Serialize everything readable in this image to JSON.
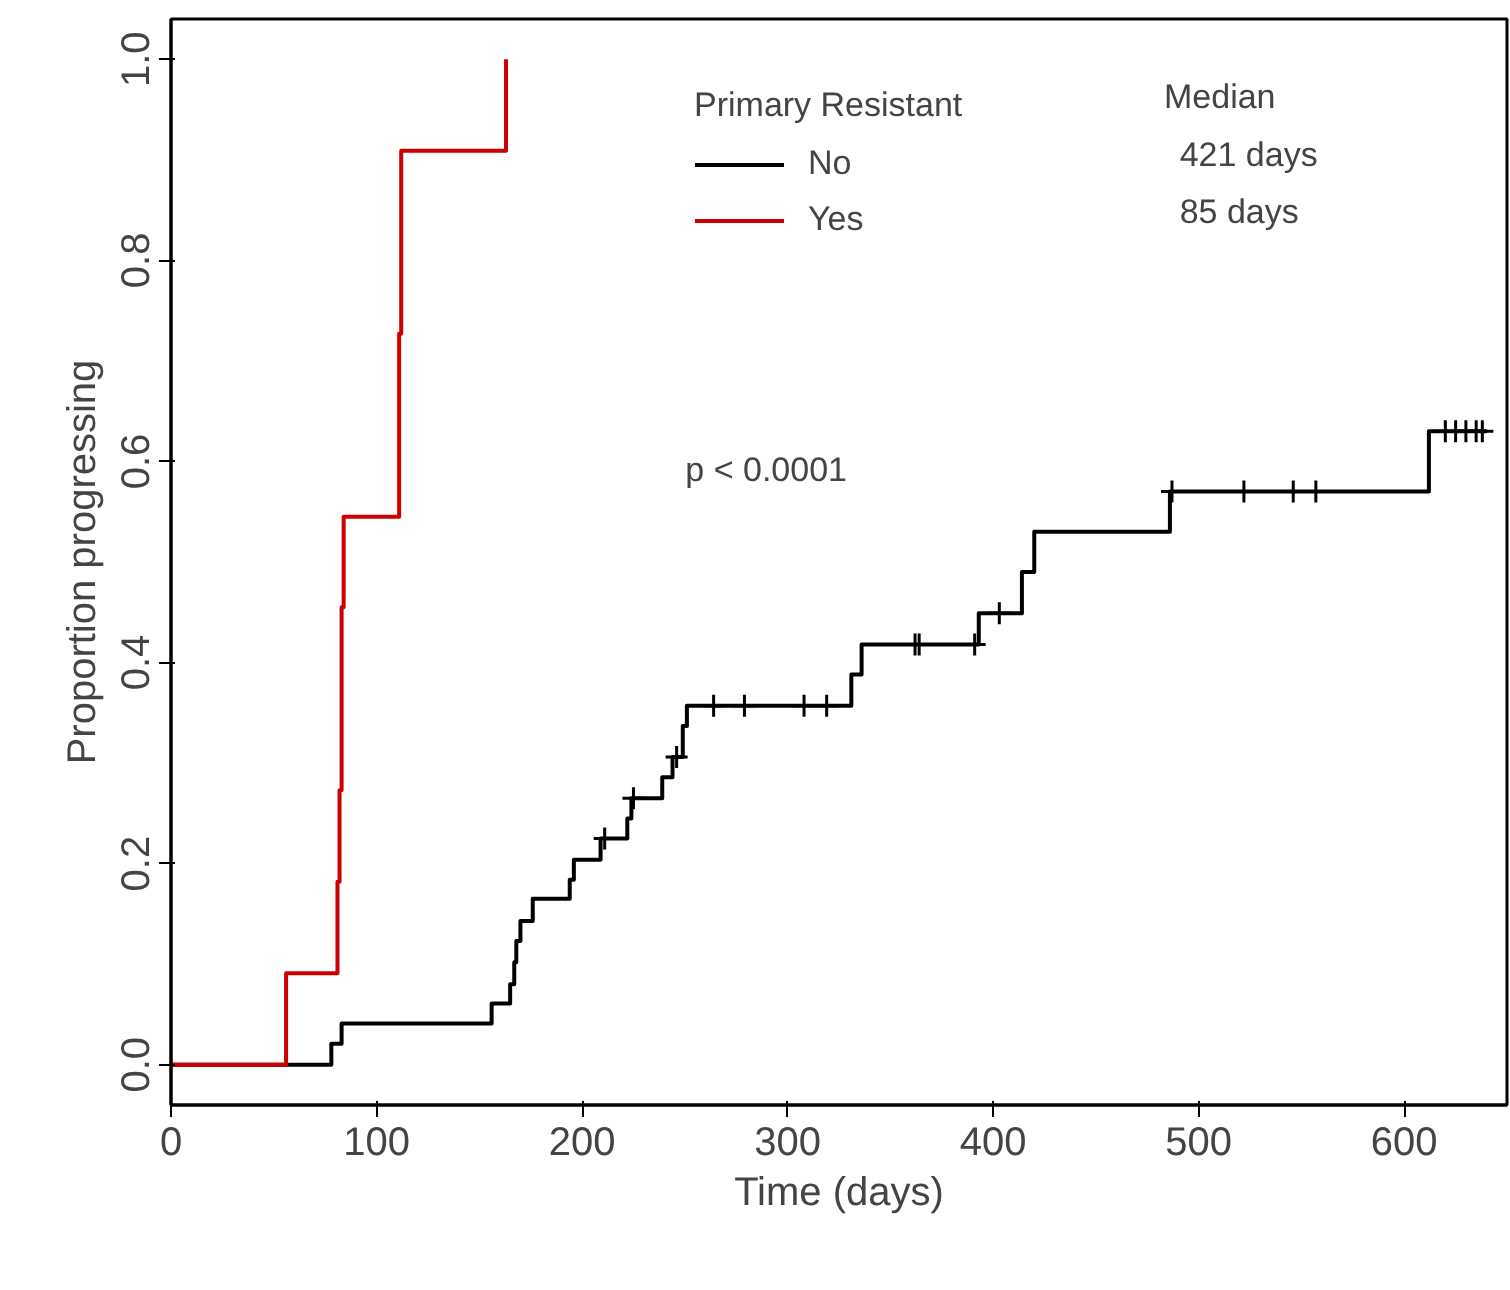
{
  "chart_data": {
    "type": "step",
    "xlabel": "Time (days)",
    "ylabel": "Proportion progressing",
    "legend_title": "Primary Resistant",
    "legend": "top",
    "grid": false,
    "xlim": [
      0,
      650
    ],
    "xticks": [
      0,
      100,
      200,
      300,
      400,
      500,
      600
    ],
    "ylim": [
      -0.04,
      1.04
    ],
    "yticks": [
      {
        "value": 0,
        "label": "0.0"
      },
      {
        "value": 0.2,
        "label": "0.2"
      },
      {
        "value": 0.4,
        "label": "0.4"
      },
      {
        "value": 0.6,
        "label": "0.6"
      },
      {
        "value": 0.8,
        "label": "0.8"
      },
      {
        "value": 1,
        "label": "1.0"
      }
    ],
    "annotations": [
      "Median",
      "421 days",
      "85 days",
      "p < 0.0001"
    ],
    "series": [
      {
        "name": "No",
        "color": "#000000",
        "x": [
          0,
          78,
          83,
          156,
          165,
          167,
          168,
          170,
          176,
          194,
          196,
          209,
          222,
          224,
          239,
          244,
          249,
          251,
          331,
          336,
          393,
          414,
          420,
          486,
          612,
          640
        ],
        "values": [
          0,
          0.021,
          0.041,
          0.061,
          0.08,
          0.102,
          0.123,
          0.143,
          0.165,
          0.184,
          0.204,
          0.225,
          0.245,
          0.265,
          0.286,
          0.306,
          0.337,
          0.357,
          0.388,
          0.418,
          0.449,
          0.49,
          0.53,
          0.57,
          0.63,
          0.63
        ]
      },
      {
        "name": "Yes",
        "color": "#cc0000",
        "x": [
          0,
          56,
          81,
          82,
          83,
          84,
          111,
          112,
          163
        ],
        "values": [
          0,
          0.091,
          0.182,
          0.273,
          0.455,
          0.545,
          0.727,
          0.909,
          1.0
        ]
      },
      {
        "type": "scatter",
        "marker": "cross",
        "color": "#000000",
        "x": [
          211,
          225,
          246,
          264,
          279,
          308,
          319,
          362,
          364,
          391,
          403,
          487,
          522,
          546,
          557,
          620,
          625,
          630,
          635,
          638
        ],
        "values": [
          0.225,
          0.265,
          0.306,
          0.357,
          0.357,
          0.357,
          0.357,
          0.418,
          0.418,
          0.418,
          0.449,
          0.57,
          0.57,
          0.57,
          0.57,
          0.63,
          0.63,
          0.63,
          0.63,
          0.63
        ]
      }
    ]
  }
}
